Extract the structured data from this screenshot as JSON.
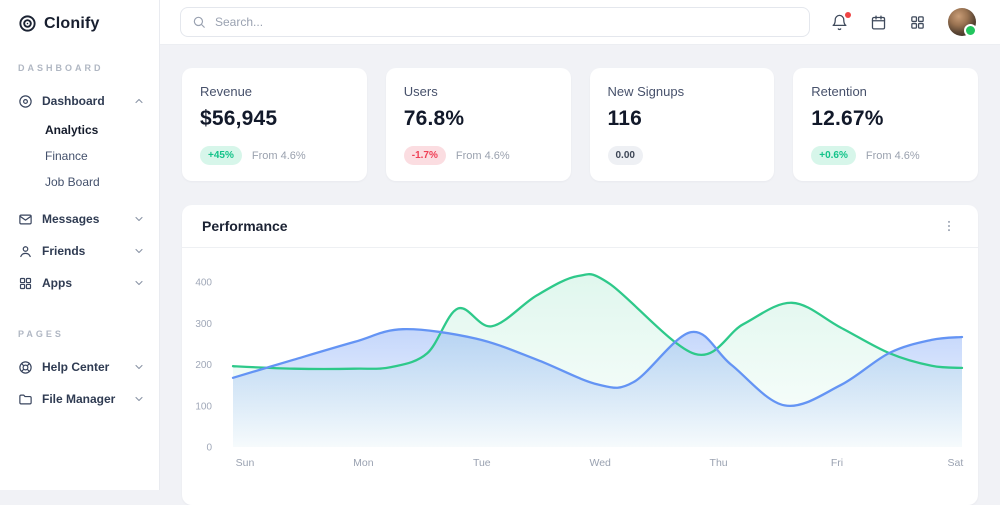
{
  "brand": {
    "name": "Clonify"
  },
  "sidebar": {
    "sections": [
      {
        "label": "DASHBOARD",
        "items": [
          {
            "label": "Dashboard",
            "icon": "disc-icon",
            "state": "expanded",
            "children": [
              {
                "label": "Analytics",
                "active": true
              },
              {
                "label": "Finance",
                "active": false
              },
              {
                "label": "Job Board",
                "active": false
              }
            ]
          },
          {
            "label": "Messages",
            "icon": "mail-icon",
            "state": "collapsed"
          },
          {
            "label": "Friends",
            "icon": "user-icon",
            "state": "collapsed"
          },
          {
            "label": "Apps",
            "icon": "grid-icon",
            "state": "collapsed"
          }
        ]
      },
      {
        "label": "PAGES",
        "items": [
          {
            "label": "Help Center",
            "icon": "life-buoy-icon",
            "state": "collapsed"
          },
          {
            "label": "File Manager",
            "icon": "folder-icon",
            "state": "collapsed"
          }
        ]
      }
    ]
  },
  "topbar": {
    "search": {
      "placeholder": "Search...",
      "icon": "search-icon"
    },
    "icons": [
      {
        "name": "bell-icon",
        "badge": true
      },
      {
        "name": "calendar-icon",
        "badge": false
      },
      {
        "name": "apps-grid-icon",
        "badge": false
      }
    ],
    "avatar": {
      "status": "online",
      "status_color": "#22c55e"
    }
  },
  "stats": {
    "cards": [
      {
        "title": "Revenue",
        "value": "$56,945",
        "badge": "+45%",
        "badge_type": "up",
        "note": "From 4.6%"
      },
      {
        "title": "Users",
        "value": "76.8%",
        "badge": "-1.7%",
        "badge_type": "down",
        "note": "From 4.6%"
      },
      {
        "title": "New Signups",
        "value": "116",
        "badge": "0.00",
        "badge_type": "neutral",
        "note": ""
      },
      {
        "title": "Retention",
        "value": "12.67%",
        "badge": "+0.6%",
        "badge_type": "up",
        "note": "From 4.6%"
      }
    ]
  },
  "chart_data": {
    "type": "area",
    "title": "Performance",
    "menu_icon": "kebab-vertical-icon",
    "x_labels": [
      "Sun",
      "Mon",
      "Tue",
      "Wed",
      "Thu",
      "Fri",
      "Sat"
    ],
    "y_ticks": [
      0,
      100,
      200,
      300,
      400
    ],
    "ylim": [
      0,
      430
    ],
    "grid": false,
    "legend": "none",
    "series": [
      {
        "name": "series-green",
        "color": "#2ec98a",
        "fill_from": "rgba(46,201,138,0.15)",
        "fill_to": "rgba(46,201,138,0.02)",
        "values_at_labels": [
          195,
          190,
          300,
          400,
          250,
          290,
          192
        ],
        "points": [
          [
            0,
            196
          ],
          [
            0.5,
            190
          ],
          [
            1,
            190
          ],
          [
            1.3,
            194
          ],
          [
            1.6,
            228
          ],
          [
            1.85,
            336
          ],
          [
            2.13,
            293
          ],
          [
            2.5,
            368
          ],
          [
            2.84,
            415
          ],
          [
            3.1,
            396
          ],
          [
            3.8,
            226
          ],
          [
            4.2,
            298
          ],
          [
            4.6,
            350
          ],
          [
            5,
            290
          ],
          [
            5.4,
            228
          ],
          [
            5.75,
            197
          ],
          [
            6,
            192
          ]
        ]
      },
      {
        "name": "series-blue",
        "color": "#6494f4",
        "fill_from": "rgba(100,148,244,0.38)",
        "fill_to": "rgba(100,148,244,0.03)",
        "values_at_labels": [
          168,
          255,
          263,
          152,
          215,
          150,
          267
        ],
        "points": [
          [
            0,
            168
          ],
          [
            0.5,
            212
          ],
          [
            1,
            255
          ],
          [
            1.4,
            286
          ],
          [
            2,
            263
          ],
          [
            2.5,
            212
          ],
          [
            3,
            152
          ],
          [
            3.3,
            158
          ],
          [
            3.77,
            279
          ],
          [
            4.1,
            200
          ],
          [
            4.54,
            101
          ],
          [
            5,
            150
          ],
          [
            5.4,
            228
          ],
          [
            5.75,
            260
          ],
          [
            6,
            267
          ]
        ]
      }
    ]
  },
  "colors": {
    "accent_green": "#2ec98a",
    "accent_blue": "#6494f4",
    "badge_up_bg": "#d7f6ea",
    "badge_up_text": "#12c389",
    "badge_down_bg": "#fbdde1",
    "badge_down_text": "#ef4056",
    "page_bg": "#f1f2f6",
    "notification_dot": "#ef4444"
  }
}
